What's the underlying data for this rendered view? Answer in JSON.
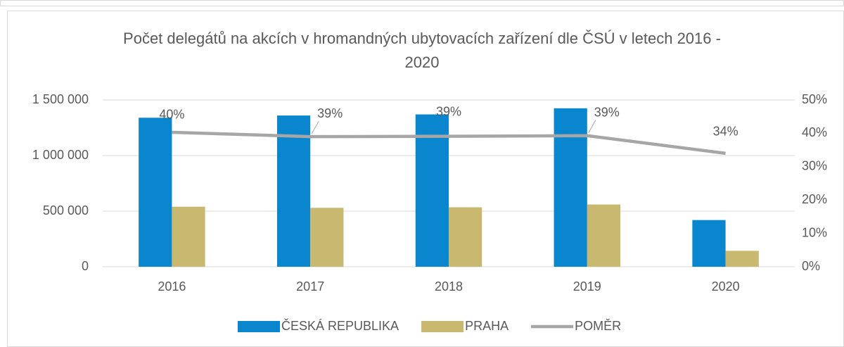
{
  "chart_data": {
    "type": "bar",
    "title": "Počet delegátů na akcích v hromandných ubytovacích zařízení dle ČSÚ v letech 2016 - 2020",
    "categories": [
      "2016",
      "2017",
      "2018",
      "2019",
      "2020"
    ],
    "series": [
      {
        "name": "ČESKÁ REPUBLIKA",
        "color": "#0a86cf",
        "values": [
          1340000,
          1360000,
          1370000,
          1425000,
          420000
        ]
      },
      {
        "name": "PRAHA",
        "color": "#c9b870",
        "values": [
          540000,
          530000,
          535000,
          560000,
          143000
        ]
      },
      {
        "name": "POMĚR",
        "color": "#a6a6a6",
        "type": "line",
        "axis": "y2",
        "values": [
          40.3,
          39.0,
          39.1,
          39.3,
          34.0
        ],
        "value_labels": [
          "40%",
          "39%",
          "39%",
          "39%",
          "34%"
        ]
      }
    ],
    "ylim": [
      0,
      1500000
    ],
    "yticks": [
      0,
      {
        "value": 500000,
        "label": "500 000"
      },
      {
        "value": 1000000,
        "label": "1 000 000"
      },
      {
        "value": 1500000,
        "label": "1 500 000"
      }
    ],
    "y2lim": [
      0,
      50
    ],
    "y2ticks": [
      {
        "value": 0,
        "label": "0%"
      },
      {
        "value": 10,
        "label": "10%"
      },
      {
        "value": 20,
        "label": "20%"
      },
      {
        "value": 30,
        "label": "30%"
      },
      {
        "value": 40,
        "label": "40%"
      },
      {
        "value": 50,
        "label": "50%"
      }
    ],
    "grid": true,
    "legend": "bottom"
  }
}
